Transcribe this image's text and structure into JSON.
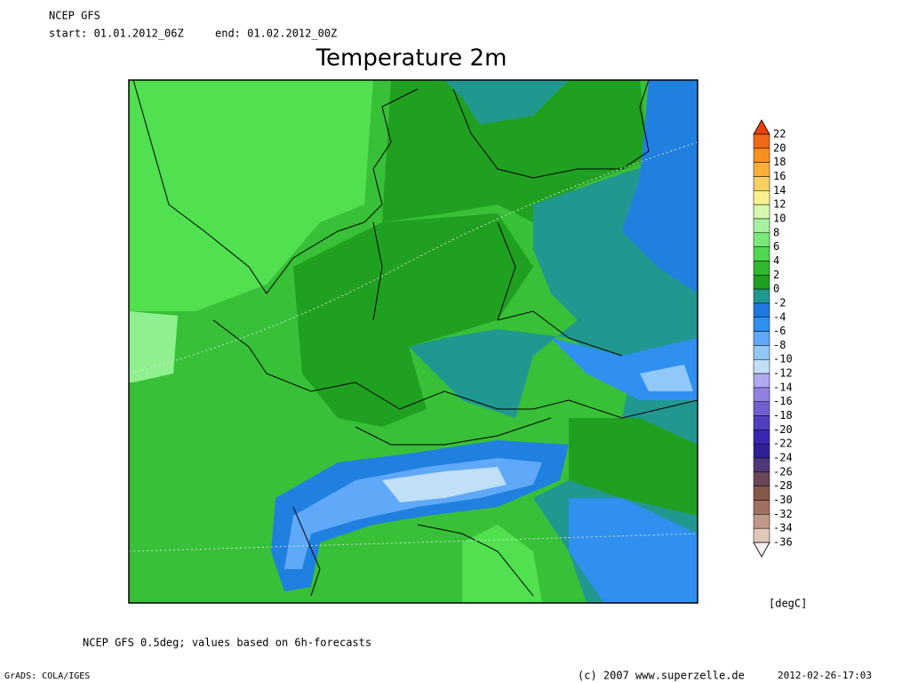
{
  "header": {
    "model": "NCEP GFS",
    "start": "start: 01.01.2012_06Z",
    "end": "end: 01.02.2012_00Z"
  },
  "title": "Temperature 2m",
  "colorbar": {
    "levels": [
      22,
      20,
      18,
      16,
      14,
      12,
      10,
      8,
      6,
      4,
      2,
      0,
      -2,
      -4,
      -6,
      -8,
      -10,
      -12,
      -14,
      -16,
      -18,
      -20,
      -22,
      -24,
      -26,
      -28,
      -30,
      -32,
      -34,
      -36
    ],
    "colors": [
      "#e84010",
      "#f06818",
      "#f89020",
      "#f8b038",
      "#f8d060",
      "#f8f090",
      "#d8f8b0",
      "#a8f0a0",
      "#78e878",
      "#50d850",
      "#30b830",
      "#20a020",
      "#209890",
      "#2078e0",
      "#3090f0",
      "#60a8f8",
      "#90c8f8",
      "#c0e0f8",
      "#b0a8f0",
      "#9080e0",
      "#7060d0",
      "#5040c0",
      "#3828b0",
      "#302098",
      "#503878",
      "#684858",
      "#885848",
      "#a07060",
      "#c09888",
      "#e0c8b8",
      "#f8f0f0"
    ],
    "unit": "[degC]"
  },
  "footer": {
    "note": "NCEP GFS 0.5deg; values based on 6h-forecasts",
    "software": "GrADS: COLA/IGES",
    "copyright": "(c) 2007 www.superzelle.de",
    "timestamp": "2012-02-26-17:03"
  }
}
